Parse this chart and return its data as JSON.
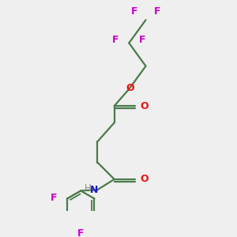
{
  "bg_color": "#efefef",
  "bond_color": "#4a7a4a",
  "O_color": "#ee1111",
  "N_color": "#1a1acc",
  "F_color": "#cc00cc",
  "H_color": "#888888",
  "line_width": 1.6,
  "figsize": [
    3.0,
    3.0
  ],
  "dpi": 100,
  "xlim": [
    0.15,
    0.85
  ],
  "ylim": [
    0.02,
    1.02
  ]
}
